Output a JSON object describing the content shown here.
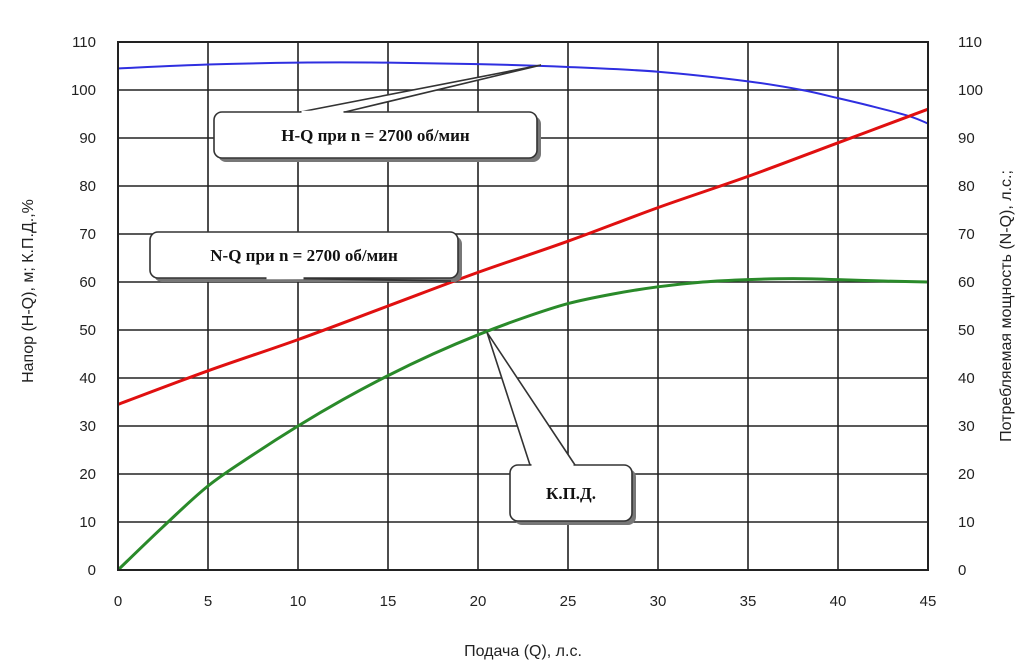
{
  "chart_data": {
    "type": "line",
    "title": "",
    "xlabel": "Подача (Q), л.с.",
    "ylabel_left": "Напор (H-Q), м; К.П.Д.,%",
    "ylabel_right": "Потребляемая мощность (N-Q), л.с.;",
    "xlim": [
      0,
      45
    ],
    "ylim": [
      0,
      110
    ],
    "x_ticks": [
      "0",
      "5",
      "10",
      "15",
      "20",
      "25",
      "30",
      "35",
      "40",
      "45"
    ],
    "y_ticks_left": [
      "0",
      "10",
      "20",
      "30",
      "40",
      "50",
      "60",
      "70",
      "80",
      "90",
      "100",
      "110"
    ],
    "y_ticks_right": [
      "0",
      "10",
      "20",
      "30",
      "40",
      "50",
      "60",
      "70",
      "80",
      "90",
      "100",
      "110"
    ],
    "grid": true,
    "series": [
      {
        "name": "H-Q при n = 2700 об/мин",
        "color": "#2f2fe0",
        "x": [
          0,
          5,
          10,
          15,
          20,
          25,
          30,
          35,
          38,
          40,
          42,
          44,
          45
        ],
        "y": [
          104.5,
          105.3,
          105.7,
          105.7,
          105.4,
          104.8,
          103.8,
          101.8,
          100,
          98.3,
          96.5,
          94.5,
          93
        ]
      },
      {
        "name": "N-Q при n = 2700 об/мин",
        "color": "#e01010",
        "x": [
          0,
          5,
          10,
          15,
          20,
          25,
          30,
          35,
          40,
          45
        ],
        "y": [
          34.5,
          41.5,
          48,
          55,
          62,
          68.5,
          75.5,
          82,
          89,
          96
        ]
      },
      {
        "name": "К.П.Д.",
        "color": "#2a8a2a",
        "x": [
          0,
          2.5,
          5,
          7.5,
          10,
          12.5,
          15,
          17.5,
          20,
          22.5,
          25,
          27.5,
          30,
          32.5,
          35,
          37.5,
          40,
          42.5,
          45
        ],
        "y": [
          0,
          9,
          17.5,
          24,
          30,
          35.5,
          40.5,
          45,
          49,
          52.5,
          55.5,
          57.5,
          59,
          60,
          60.5,
          60.7,
          60.5,
          60.2,
          60
        ]
      }
    ],
    "callouts": [
      {
        "text": "H-Q при n = 2700 об/мин",
        "series": 0,
        "point": [
          23.5,
          105.2
        ]
      },
      {
        "text": "N-Q при n = 2700 об/мин",
        "series": 1,
        "point": [
          18.5,
          60.2
        ]
      },
      {
        "text": "К.П.Д.",
        "series": 2,
        "point": [
          20.5,
          49.5
        ]
      }
    ]
  }
}
